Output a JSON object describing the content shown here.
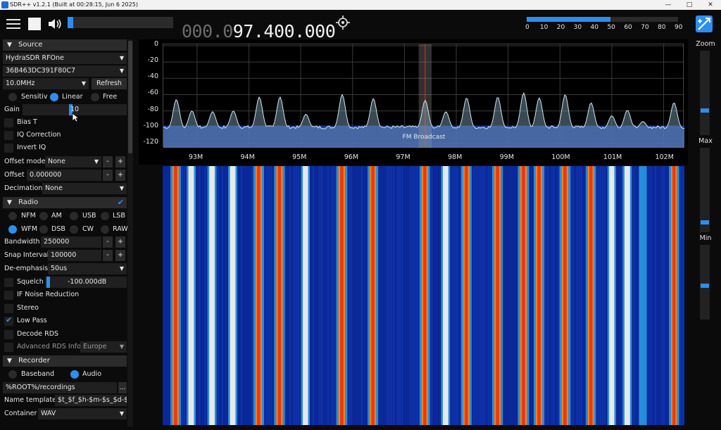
{
  "window": {
    "title": "SDR++ v1.2.1 (Built at 00:28:15, Jun  6 2025)",
    "controls": [
      "—",
      "□",
      "✕"
    ]
  },
  "toolbar": {
    "menu_icon": "hamburger-menu-icon",
    "stop_icon": "stop-icon",
    "volume_icon": "speaker-icon",
    "volume_level": 0.05,
    "frequency_dim": "000.0",
    "frequency_bright": "97.400.000",
    "tune_icon": "crosshair-icon",
    "snr_ticks": [
      "0",
      "10",
      "20",
      "30",
      "40",
      "50",
      "60",
      "70",
      "80",
      "90"
    ],
    "snr_level": 50,
    "accent_color": "#2e8ef0"
  },
  "source": {
    "header": "Source",
    "device": "HydraSDR RFOne",
    "serial": "36B463DC391F80C7",
    "samplerate": "10.0MHz",
    "refresh_label": "Refresh",
    "gain_modes": [
      {
        "label": "Sensitiv",
        "selected": false
      },
      {
        "label": "Linear",
        "selected": true
      },
      {
        "label": "Free",
        "selected": false
      }
    ],
    "gain_label": "Gain",
    "gain_value": "10",
    "checkboxes": [
      {
        "label": "Bias T",
        "checked": false
      },
      {
        "label": "IQ Correction",
        "checked": false
      },
      {
        "label": "Invert IQ",
        "checked": false
      }
    ],
    "offset_mode_label": "Offset mode",
    "offset_mode_value": "None",
    "offset_label": "Offset",
    "offset_value": "0.000000",
    "decimation_label": "Decimation",
    "decimation_value": "None",
    "minus": "-",
    "plus": "+"
  },
  "radio": {
    "header": "Radio",
    "modes": [
      {
        "label": "NFM",
        "selected": false
      },
      {
        "label": "AM",
        "selected": false
      },
      {
        "label": "USB",
        "selected": false
      },
      {
        "label": "LSB",
        "selected": false
      },
      {
        "label": "WFM",
        "selected": true
      },
      {
        "label": "DSB",
        "selected": false
      },
      {
        "label": "CW",
        "selected": false
      },
      {
        "label": "RAW",
        "selected": false
      }
    ],
    "bandwidth_label": "Bandwidth",
    "bandwidth_value": "250000",
    "snap_label": "Snap Interval",
    "snap_value": "100000",
    "deemph_label": "De-emphasis",
    "deemph_value": "50us",
    "squelch_label": "Squelch",
    "squelch_value": "-100.000dB",
    "options": [
      {
        "label": "IF Noise Reduction",
        "checked": false
      },
      {
        "label": "Stereo",
        "checked": false
      },
      {
        "label": "Low Pass",
        "checked": true
      },
      {
        "label": "Decode RDS",
        "checked": false
      }
    ],
    "advanced_rds_label": "Advanced RDS Info",
    "advanced_rds_region": "Europe"
  },
  "recorder": {
    "header": "Recorder",
    "modes": [
      {
        "label": "Baseband",
        "selected": false
      },
      {
        "label": "Audio",
        "selected": true
      }
    ],
    "path": "%ROOT%/recordings",
    "browse": "...",
    "name_template_label": "Name template",
    "name_template_value": "$t_$f_$h-$m-$s_$d-$M",
    "container_label": "Container",
    "container_value": "WAV"
  },
  "spectrum": {
    "y_ticks": [
      "0",
      "-20",
      "-40",
      "-60",
      "-80",
      "-100",
      "-120"
    ],
    "x_ticks": [
      "93M",
      "94M",
      "95M",
      "96M",
      "97M",
      "98M",
      "99M",
      "100M",
      "101M",
      "102M"
    ],
    "band_label": "FM Broadcast",
    "tuned_mhz": 97.4,
    "stations_mhz": [
      92.6,
      92.9,
      93.3,
      93.7,
      94.2,
      94.6,
      95.1,
      95.8,
      96.4,
      97.4,
      97.8,
      98.2,
      98.8,
      99.3,
      99.6,
      100.1,
      100.6,
      101.0,
      101.3,
      101.6,
      102.2
    ]
  },
  "zoom": {
    "zoom_label": "Zoom",
    "max_label": "Max",
    "min_label": "Min",
    "zoom_level": 0.72,
    "max_level": 0.9,
    "min_level": 0.55
  }
}
